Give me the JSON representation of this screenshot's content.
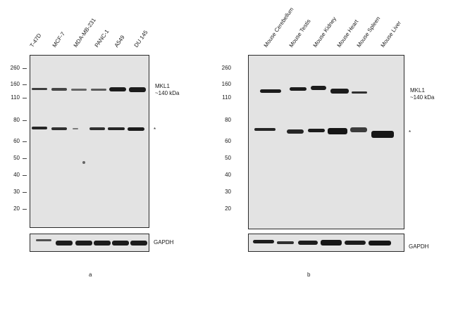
{
  "panel_a": {
    "letter": "a",
    "lanes": [
      "T-47D",
      "MCF-7",
      "MDA-MB-231",
      "PANC-1",
      "A549",
      "DU 145"
    ],
    "markers": [
      "260",
      "160",
      "110",
      "80",
      "60",
      "50",
      "40",
      "30",
      "20"
    ],
    "target_label_line1": "MKL1",
    "target_label_line2": "~140 kDa",
    "loading_label": "GAPDH",
    "asterisk": "*"
  },
  "panel_b": {
    "letter": "b",
    "lanes": [
      "Mouse Cerebellum",
      "Mouse Testis",
      "Mouse Kidney",
      "Mouse Heart",
      "Mouse Spleen",
      "Mouse Liver"
    ],
    "markers": [
      "260",
      "160",
      "110",
      "80",
      "60",
      "50",
      "40",
      "30",
      "20"
    ],
    "target_label_line1": "MKL1",
    "target_label_line2": "~140 kDa",
    "loading_label": "GAPDH",
    "asterisk": "*"
  }
}
